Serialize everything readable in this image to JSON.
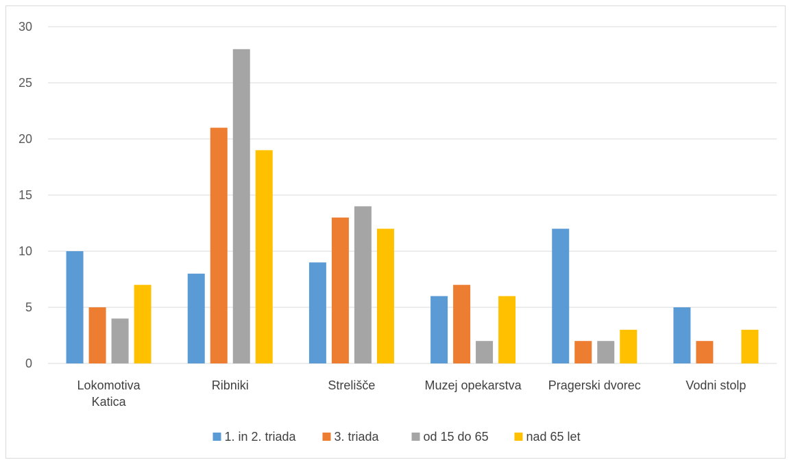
{
  "chart_data": {
    "type": "bar",
    "title": "",
    "xlabel": "",
    "ylabel": "",
    "ylim": [
      0,
      30
    ],
    "yticks": [
      0,
      5,
      10,
      15,
      20,
      25,
      30
    ],
    "grid": true,
    "legend_position": "bottom",
    "categories": [
      [
        "Lokomotiva",
        "Katica"
      ],
      [
        "Ribniki"
      ],
      [
        "Strelišče"
      ],
      [
        "Muzej opekarstva"
      ],
      [
        "Pragerski dvorec"
      ],
      [
        "Vodni stolp"
      ]
    ],
    "series": [
      {
        "name": "1. in 2. triada",
        "color": "#5b9bd5",
        "values": [
          10,
          8,
          9,
          6,
          12,
          5
        ]
      },
      {
        "name": "3. triada",
        "color": "#ed7d31",
        "values": [
          5,
          21,
          13,
          7,
          2,
          2
        ]
      },
      {
        "name": "od 15 do 65",
        "color": "#a5a5a5",
        "values": [
          4,
          28,
          14,
          2,
          2,
          0
        ]
      },
      {
        "name": "nad 65 let",
        "color": "#ffc000",
        "values": [
          7,
          19,
          12,
          6,
          3,
          3
        ]
      }
    ]
  }
}
